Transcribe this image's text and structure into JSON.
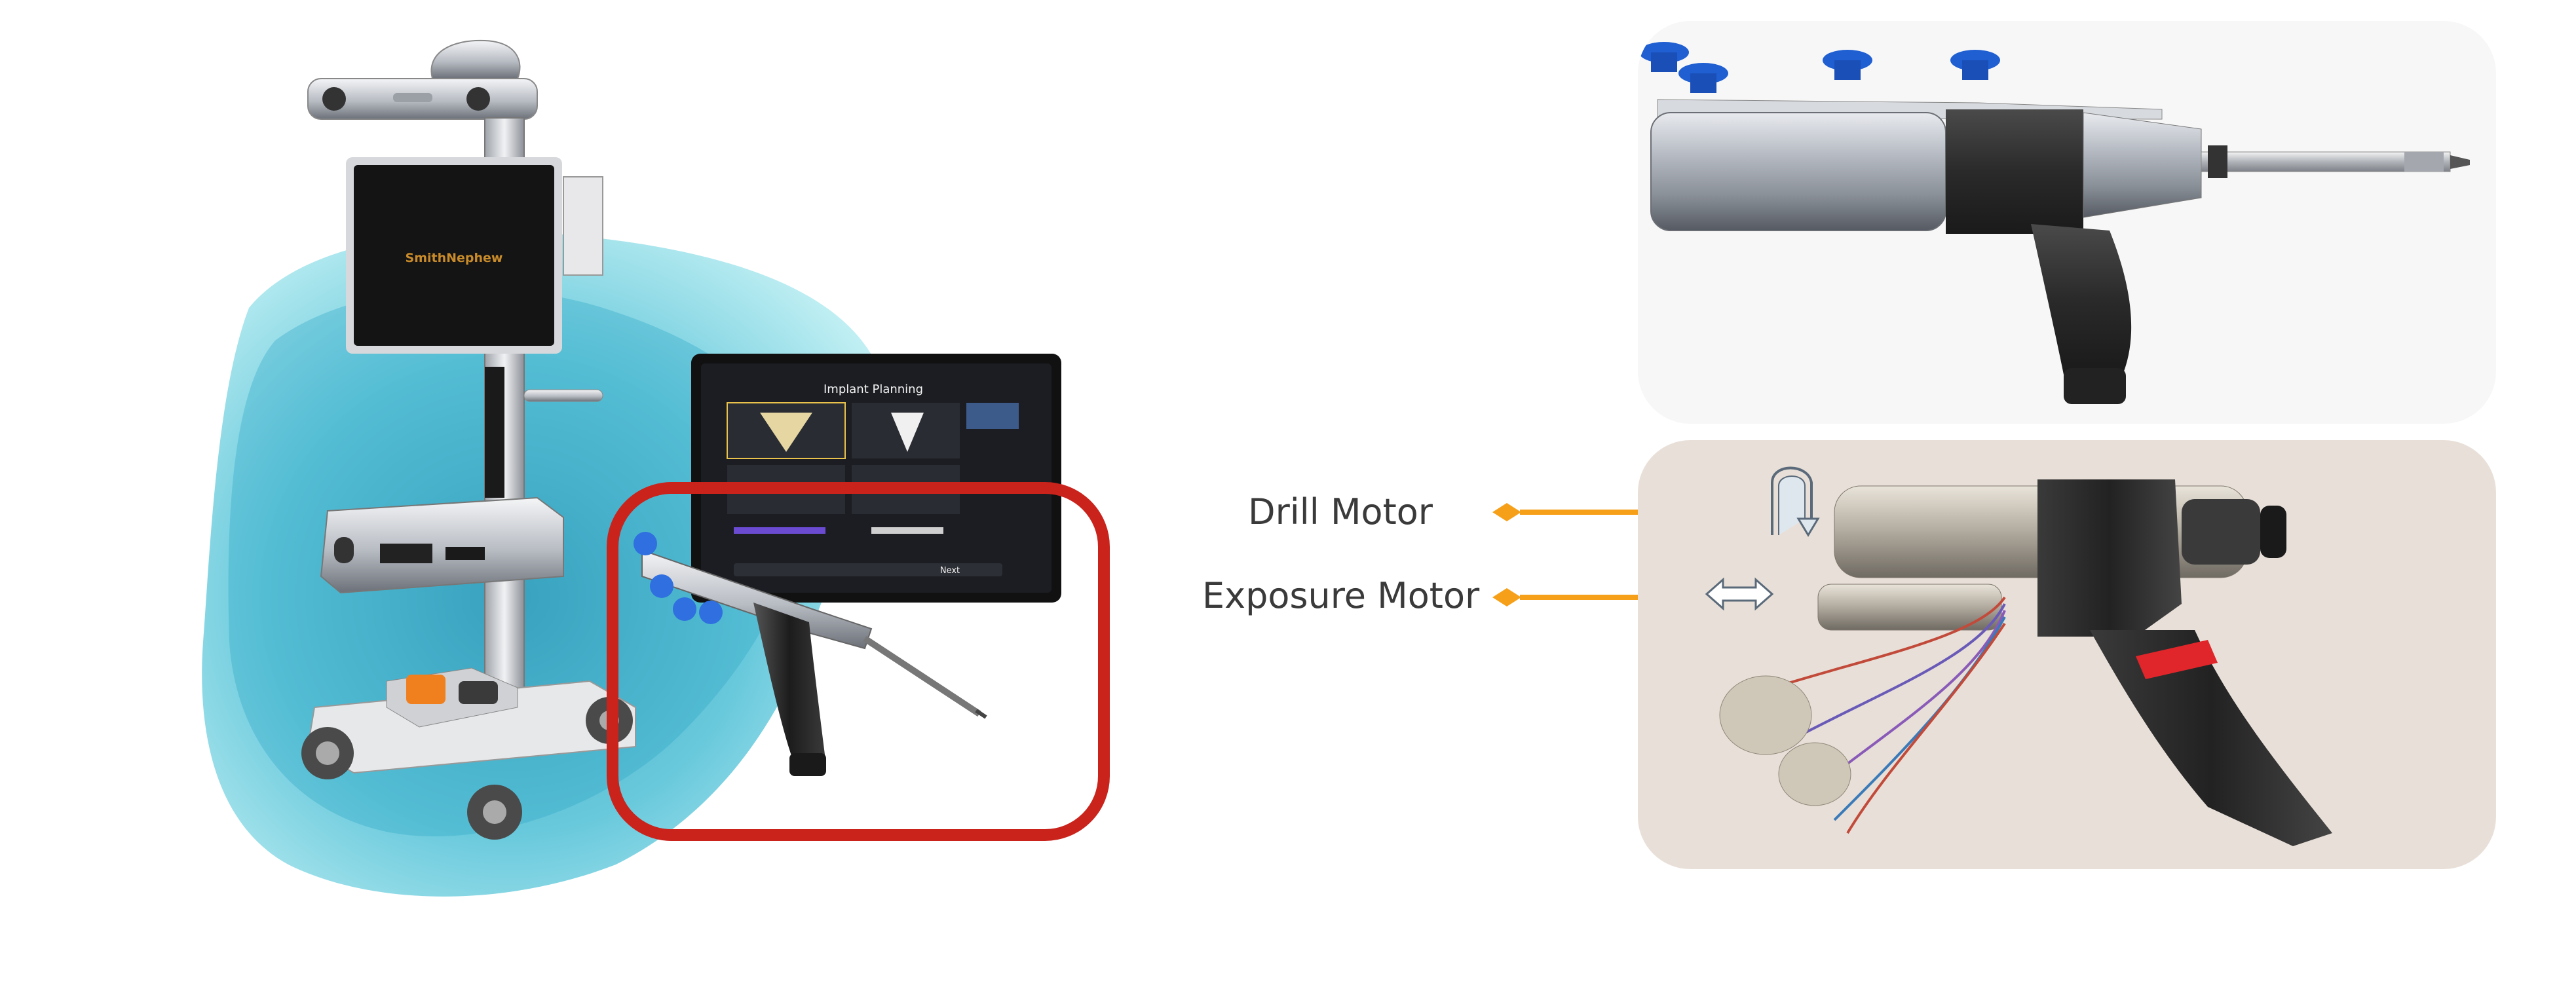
{
  "labels": {
    "drill_motor": "Drill Motor",
    "exposure_motor": "Exposure Motor"
  },
  "device": {
    "monitor_brand": "SmithNephew",
    "tablet_title": "Implant Planning",
    "tablet_next": "Next"
  },
  "colors": {
    "arrow": "#f6a01a",
    "highlight_box": "#c9231c",
    "tool_blue": "#1f5fd1",
    "grip": "#2b2b2b",
    "photo_bg": "#e8e0d8",
    "red_tape": "#e0262a"
  },
  "icons": {
    "drill_motor": "rotation-arrow-icon",
    "exposure_motor": "double-headed-arrow-icon"
  }
}
